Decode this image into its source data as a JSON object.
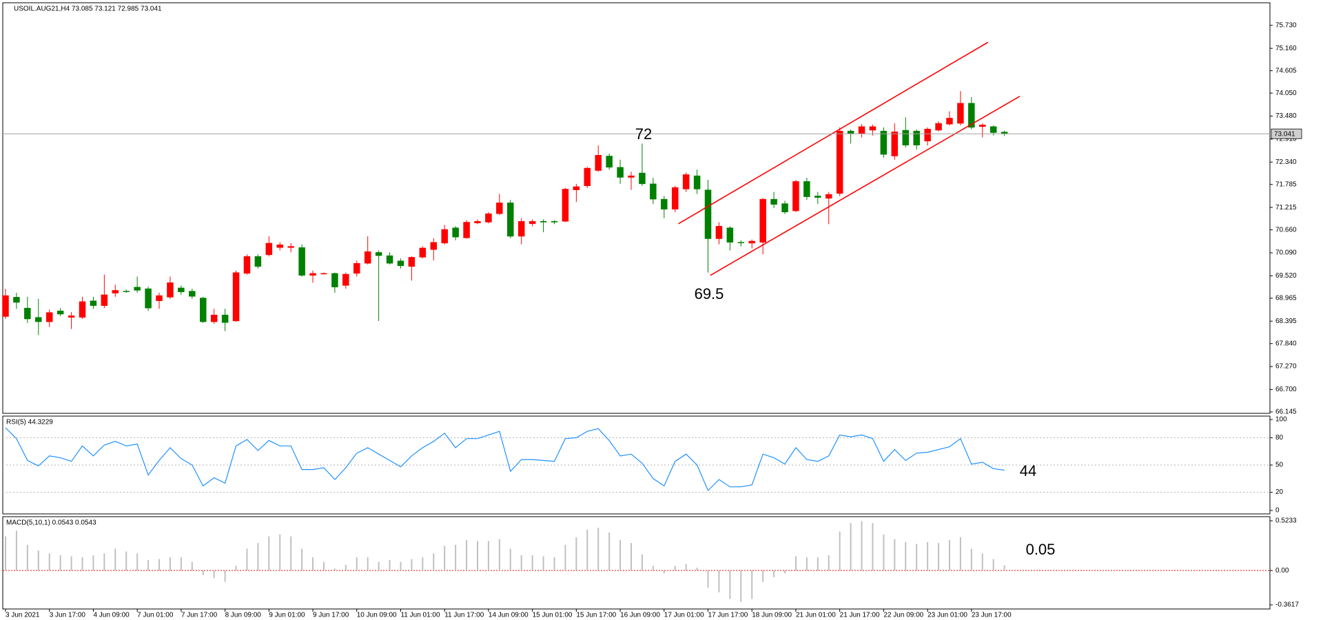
{
  "chart_data": [
    {
      "type": "candlestick",
      "title": "USOIL.AUG21,H4 73.085 73.121 72.985 73.041",
      "up_color": "#ff0000",
      "down_color": "#008000",
      "categories": [
        "3 Jun 2021",
        null,
        null,
        null,
        "3 Jun 17:00",
        null,
        null,
        null,
        "4 Jun 09:00",
        null,
        null,
        null,
        "7 Jun 01:00",
        null,
        null,
        null,
        "7 Jun 17:00",
        null,
        null,
        null,
        "8 Jun 09:00",
        null,
        null,
        null,
        "9 Jun 01:00",
        null,
        null,
        null,
        "9 Jun 17:00",
        null,
        null,
        null,
        "10 Jun 09:00",
        null,
        null,
        null,
        "11 Jun 01:00",
        null,
        null,
        null,
        "11 Jun 17:00",
        null,
        null,
        null,
        "14 Jun 09:00",
        null,
        null,
        null,
        "15 Jun 01:00",
        null,
        null,
        null,
        "15 Jun 17:00",
        null,
        null,
        null,
        "16 Jun 09:00",
        null,
        null,
        null,
        "17 Jun 01:00",
        null,
        null,
        null,
        "17 Jun 17:00",
        null,
        null,
        null,
        "18 Jun 09:00",
        null,
        null,
        null,
        "21 Jun 01:00",
        null,
        null,
        null,
        "21 Jun 17:00",
        null,
        null,
        null,
        "22 Jun 09:00",
        null,
        null,
        null,
        "23 Jun 01:00",
        null,
        null,
        null,
        "23 Jun 17:00",
        null,
        null,
        null
      ],
      "open": [
        68.51,
        68.99,
        68.72,
        68.49,
        68.38,
        68.65,
        68.49,
        68.49,
        68.9,
        68.78,
        69.09,
        69.14,
        69.24,
        69.2,
        68.9,
        68.99,
        69.22,
        69.14,
        68.97,
        68.38,
        68.55,
        68.4,
        69.58,
        70.0,
        70.04,
        70.22,
        70.22,
        70.22,
        69.53,
        69.57,
        69.58,
        69.28,
        69.58,
        69.83,
        70.1,
        70.02,
        69.89,
        69.75,
        69.98,
        70.17,
        70.33,
        70.71,
        70.46,
        70.83,
        70.85,
        71.06,
        71.33,
        70.5,
        70.81,
        70.87,
        70.87,
        70.87,
        71.65,
        71.75,
        72.13,
        72.49,
        72.21,
        71.96,
        72.07,
        71.8,
        71.42,
        71.17,
        71.67,
        72.0,
        71.65,
        70.44,
        70.71,
        70.35,
        70.33,
        70.35,
        71.42,
        71.31,
        71.13,
        71.86,
        71.5,
        71.44,
        71.56,
        73.11,
        73.05,
        73.13,
        73.11,
        72.49,
        73.13,
        73.11,
        72.86,
        73.13,
        73.28,
        73.3,
        73.8,
        73.22,
        73.22,
        73.085
      ],
      "high": [
        69.2,
        69.1,
        69.0,
        68.95,
        68.68,
        68.72,
        68.62,
        69.0,
        69.0,
        69.55,
        69.3,
        69.18,
        69.5,
        69.25,
        69.1,
        69.5,
        69.28,
        69.2,
        69.0,
        68.7,
        68.7,
        69.65,
        70.05,
        70.05,
        70.5,
        70.35,
        70.33,
        70.3,
        69.65,
        69.6,
        69.6,
        69.6,
        69.9,
        70.5,
        70.15,
        70.1,
        69.95,
        70.0,
        70.25,
        70.45,
        70.78,
        70.75,
        70.9,
        70.92,
        71.1,
        71.55,
        71.4,
        70.95,
        70.92,
        70.92,
        70.9,
        71.7,
        71.8,
        72.22,
        72.75,
        72.55,
        72.4,
        72.1,
        72.8,
        71.95,
        71.5,
        71.75,
        72.08,
        72.15,
        71.9,
        70.85,
        70.75,
        70.4,
        70.42,
        71.45,
        71.6,
        71.38,
        71.9,
        71.95,
        71.6,
        71.6,
        73.2,
        73.15,
        73.28,
        73.27,
        73.2,
        73.3,
        73.45,
        73.15,
        73.2,
        73.35,
        73.6,
        74.1,
        73.95,
        73.3,
        73.25,
        73.121
      ],
      "low": [
        68.45,
        68.7,
        68.35,
        68.05,
        68.25,
        68.52,
        68.2,
        68.45,
        68.7,
        68.72,
        69.0,
        69.1,
        69.1,
        68.65,
        68.7,
        68.95,
        69.05,
        68.95,
        68.35,
        68.33,
        68.15,
        68.38,
        69.55,
        69.7,
        70.0,
        70.15,
        70.1,
        69.5,
        69.35,
        69.55,
        69.1,
        69.2,
        69.5,
        69.8,
        68.4,
        69.8,
        69.7,
        69.4,
        69.95,
        69.9,
        70.3,
        70.4,
        70.44,
        70.8,
        70.82,
        71.03,
        70.45,
        70.3,
        70.75,
        70.6,
        70.8,
        70.85,
        71.35,
        71.7,
        72.1,
        72.15,
        71.8,
        71.65,
        71.75,
        71.3,
        70.95,
        71.1,
        71.6,
        71.55,
        69.6,
        70.3,
        70.15,
        70.25,
        70.2,
        70.05,
        71.2,
        71.05,
        71.1,
        71.4,
        71.3,
        70.8,
        71.5,
        72.8,
        72.95,
        73.0,
        72.45,
        72.4,
        72.7,
        72.65,
        72.75,
        73.1,
        73.25,
        73.25,
        73.15,
        72.95,
        73.0,
        72.985
      ],
      "close": [
        69.03,
        68.86,
        68.45,
        68.38,
        68.61,
        68.57,
        68.53,
        68.88,
        68.78,
        69.05,
        69.16,
        69.13,
        69.16,
        68.72,
        69.03,
        69.35,
        69.12,
        69.01,
        68.38,
        68.55,
        68.36,
        69.6,
        70.0,
        69.75,
        70.33,
        70.29,
        70.25,
        69.53,
        69.58,
        69.58,
        69.24,
        69.56,
        69.83,
        70.12,
        70.02,
        69.83,
        69.77,
        69.98,
        70.21,
        70.35,
        70.67,
        70.48,
        70.85,
        70.87,
        71.06,
        71.33,
        70.5,
        70.87,
        70.87,
        70.85,
        70.85,
        71.67,
        71.73,
        72.19,
        72.51,
        72.21,
        71.96,
        72.0,
        71.8,
        71.42,
        71.17,
        71.71,
        72.03,
        71.67,
        70.44,
        70.75,
        70.35,
        70.34,
        70.38,
        71.42,
        71.29,
        71.1,
        71.86,
        71.48,
        71.46,
        71.54,
        73.11,
        73.05,
        73.22,
        73.22,
        72.53,
        73.09,
        72.76,
        72.76,
        73.16,
        73.3,
        73.43,
        73.8,
        73.2,
        73.26,
        73.07,
        73.041
      ],
      "ylim": [
        66.11,
        76.29
      ],
      "yticks": [
        {
          "value": 75.73,
          "label": "75.730"
        },
        {
          "value": 75.16,
          "label": "75.160"
        },
        74.605,
        {
          "value": 74.05,
          "label": "74.050"
        },
        {
          "value": 73.48,
          "label": "73.480"
        },
        {
          "value": 72.91,
          "label": "72.910"
        },
        {
          "value": 72.34,
          "label": "72.340"
        },
        71.785,
        71.215,
        {
          "value": 70.66,
          "label": "70.660"
        },
        {
          "value": 70.09,
          "label": "70.090"
        },
        {
          "value": 69.52,
          "label": "69.520"
        },
        68.965,
        68.395,
        {
          "value": 67.84,
          "label": "67.840"
        },
        {
          "value": 67.27,
          "label": "67.270"
        },
        {
          "value": 66.7,
          "label": "66.700"
        },
        66.145
      ],
      "current_price": 73.041,
      "channel_color": "#ff0000",
      "channel": [
        {
          "x": [
            61.3,
            89.5
          ],
          "y": [
            70.81,
            75.31
          ]
        },
        {
          "x": [
            64.2,
            92.4
          ],
          "y": [
            69.53,
            73.97
          ]
        }
      ],
      "annotation_color": "#ff0000",
      "annotations": [
        "72",
        "69.5"
      ]
    },
    {
      "type": "line",
      "title": "RSI(5) 44.3229",
      "color": "#1e90ff",
      "grid": true,
      "values": [
        91,
        79,
        55,
        49,
        60,
        58,
        54,
        71,
        60,
        72,
        76,
        71,
        73,
        39,
        55,
        69,
        57,
        50,
        27,
        36,
        30,
        71,
        78,
        66,
        77,
        71,
        71,
        45,
        45,
        47,
        34,
        47,
        63,
        69,
        62,
        55,
        48,
        60,
        69,
        76,
        85,
        69,
        79,
        79,
        83,
        87,
        43,
        56,
        56,
        55,
        54,
        79,
        80,
        87,
        90,
        77,
        60,
        62,
        52,
        35,
        27,
        54,
        62,
        50,
        22,
        34,
        26,
        26,
        28,
        62,
        58,
        51,
        69,
        56,
        54,
        60,
        83,
        81,
        83,
        79,
        54,
        67,
        55,
        63,
        64,
        67,
        70,
        79,
        51,
        53,
        46,
        44.3229
      ],
      "ylim": [
        -3.8,
        103.8
      ],
      "yticks": [
        100,
        80,
        50,
        20,
        0
      ],
      "annotation_color": "#ff0000",
      "annotations": [
        "44"
      ]
    },
    {
      "type": "bar",
      "title": "MACD(5,10,1) 0.0543 0.0543",
      "color": "#c0c0c0",
      "values": [
        0.36,
        0.42,
        0.27,
        0.21,
        0.18,
        0.16,
        0.15,
        0.14,
        0.16,
        0.18,
        0.23,
        0.2,
        0.18,
        0.11,
        0.12,
        0.14,
        0.14,
        0.09,
        -0.05,
        -0.08,
        -0.12,
        0.05,
        0.23,
        0.29,
        0.36,
        0.38,
        0.36,
        0.23,
        0.14,
        0.09,
        0.02,
        0.06,
        0.14,
        0.14,
        0.09,
        0.11,
        0.09,
        0.12,
        0.14,
        0.18,
        0.26,
        0.27,
        0.32,
        0.31,
        0.31,
        0.33,
        0.23,
        0.16,
        0.16,
        0.15,
        0.14,
        0.27,
        0.35,
        0.43,
        0.45,
        0.4,
        0.32,
        0.29,
        0.17,
        0.05,
        -0.03,
        0.05,
        0.07,
        0.03,
        -0.18,
        -0.23,
        -0.3,
        -0.33,
        -0.3,
        -0.12,
        -0.07,
        -0.03,
        0.15,
        0.14,
        0.14,
        0.16,
        0.41,
        0.5,
        0.52,
        0.5,
        0.38,
        0.33,
        0.3,
        0.28,
        0.3,
        0.29,
        0.32,
        0.35,
        0.23,
        0.18,
        0.12,
        0.0543
      ],
      "ylim": [
        -0.405,
        0.567
      ],
      "yticks": [
        0.5233,
        {
          "value": 0,
          "label": "0.00"
        },
        -0.3617
      ],
      "annotation_color": "#ff0000",
      "annotations": [
        "0.05"
      ]
    }
  ]
}
